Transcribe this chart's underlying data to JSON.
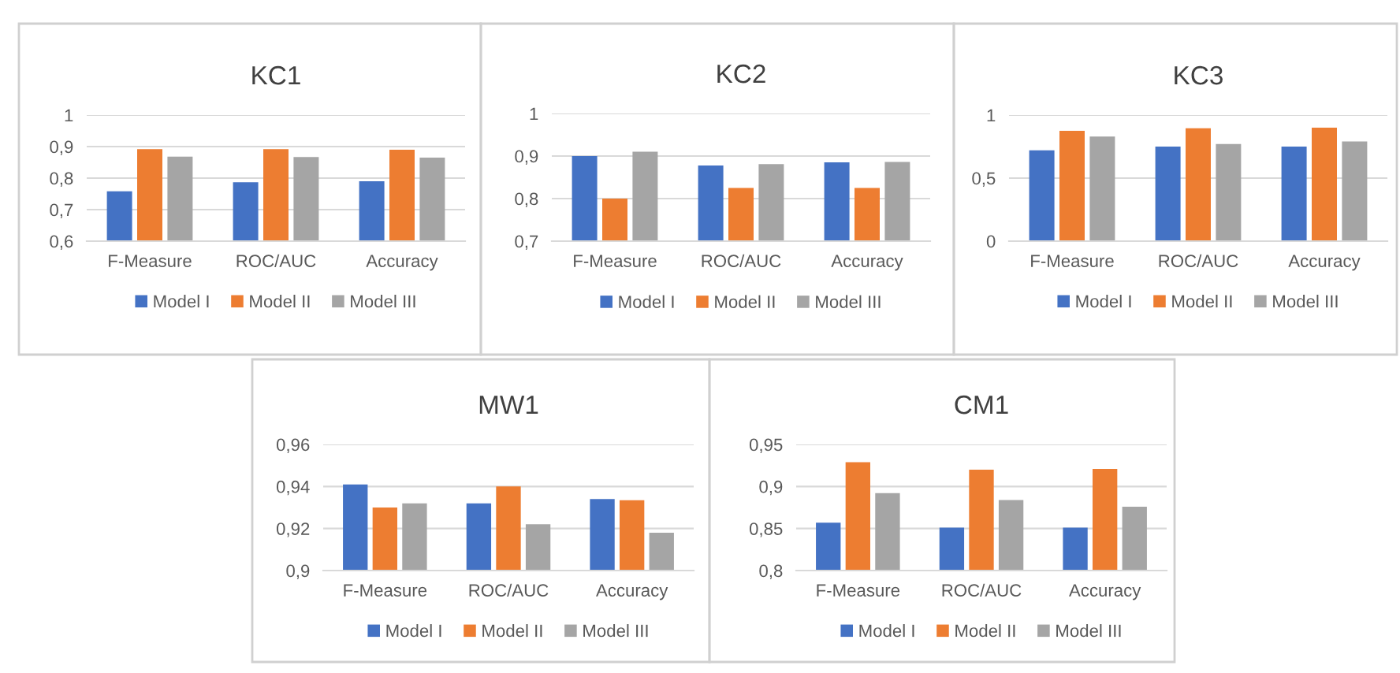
{
  "chart_data": [
    {
      "type": "bar",
      "title": "KC1",
      "categories": [
        "F-Measure",
        "ROC/AUC",
        "Accuracy"
      ],
      "series": [
        {
          "name": "Model I",
          "color": "#4472c4",
          "values": [
            0.758,
            0.787,
            0.79
          ]
        },
        {
          "name": "Model II",
          "color": "#ed7d31",
          "values": [
            0.892,
            0.892,
            0.89
          ]
        },
        {
          "name": "Model III",
          "color": "#a5a5a5",
          "values": [
            0.868,
            0.867,
            0.865
          ]
        }
      ],
      "ylim": [
        0.6,
        1
      ],
      "yticks": [
        {
          "value": 0.6,
          "label": "0,6"
        },
        {
          "value": 0.7,
          "label": "0,7"
        },
        {
          "value": 0.8,
          "label": "0,8"
        },
        {
          "value": 0.9,
          "label": "0,9"
        },
        1
      ],
      "grid": "y",
      "legend": "bottom"
    },
    {
      "type": "bar",
      "title": "KC2",
      "categories": [
        "F-Measure",
        "ROC/AUC",
        "Accuracy"
      ],
      "series": [
        {
          "name": "Model I",
          "color": "#4472c4",
          "values": [
            0.9,
            0.878,
            0.885
          ]
        },
        {
          "name": "Model II",
          "color": "#ed7d31",
          "values": [
            0.8,
            0.825,
            0.825
          ]
        },
        {
          "name": "Model III",
          "color": "#a5a5a5",
          "values": [
            0.91,
            0.881,
            0.886
          ]
        }
      ],
      "ylim": [
        0.7,
        1
      ],
      "yticks": [
        {
          "value": 0.7,
          "label": "0,7"
        },
        {
          "value": 0.8,
          "label": "0,8"
        },
        {
          "value": 0.9,
          "label": "0,9"
        },
        1
      ],
      "grid": "y",
      "legend": "bottom"
    },
    {
      "type": "bar",
      "title": "KC3",
      "categories": [
        "F-Measure",
        "ROC/AUC",
        "Accuracy"
      ],
      "series": [
        {
          "name": "Model I",
          "color": "#4472c4",
          "values": [
            0.72,
            0.75,
            0.75
          ]
        },
        {
          "name": "Model II",
          "color": "#ed7d31",
          "values": [
            0.875,
            0.895,
            0.9
          ]
        },
        {
          "name": "Model III",
          "color": "#a5a5a5",
          "values": [
            0.83,
            0.77,
            0.79
          ]
        }
      ],
      "ylim": [
        0,
        1
      ],
      "yticks": [
        0,
        {
          "value": 0.5,
          "label": "0,5"
        },
        1
      ],
      "grid": "y",
      "legend": "bottom"
    },
    {
      "type": "bar",
      "title": "MW1",
      "categories": [
        "F-Measure",
        "ROC/AUC",
        "Accuracy"
      ],
      "series": [
        {
          "name": "Model I",
          "color": "#4472c4",
          "values": [
            0.941,
            0.932,
            0.934
          ]
        },
        {
          "name": "Model II",
          "color": "#ed7d31",
          "values": [
            0.93,
            0.94,
            0.9335
          ]
        },
        {
          "name": "Model III",
          "color": "#a5a5a5",
          "values": [
            0.932,
            0.922,
            0.918
          ]
        }
      ],
      "ylim": [
        0.9,
        0.96
      ],
      "yticks": [
        {
          "value": 0.9,
          "label": "0,9"
        },
        {
          "value": 0.92,
          "label": "0,92"
        },
        {
          "value": 0.94,
          "label": "0,94"
        },
        {
          "value": 0.96,
          "label": "0,96"
        }
      ],
      "grid": "y",
      "legend": "bottom"
    },
    {
      "type": "bar",
      "title": "CM1",
      "categories": [
        "F-Measure",
        "ROC/AUC",
        "Accuracy"
      ],
      "series": [
        {
          "name": "Model I",
          "color": "#4472c4",
          "values": [
            0.857,
            0.851,
            0.851
          ]
        },
        {
          "name": "Model II",
          "color": "#ed7d31",
          "values": [
            0.929,
            0.92,
            0.921
          ]
        },
        {
          "name": "Model III",
          "color": "#a5a5a5",
          "values": [
            0.892,
            0.884,
            0.876
          ]
        }
      ],
      "ylim": [
        0.8,
        0.95
      ],
      "yticks": [
        {
          "value": 0.8,
          "label": "0,8"
        },
        {
          "value": 0.85,
          "label": "0,85"
        },
        {
          "value": 0.9,
          "label": "0,9"
        },
        {
          "value": 0.95,
          "label": "0,95"
        }
      ],
      "grid": "y",
      "legend": "bottom"
    }
  ]
}
